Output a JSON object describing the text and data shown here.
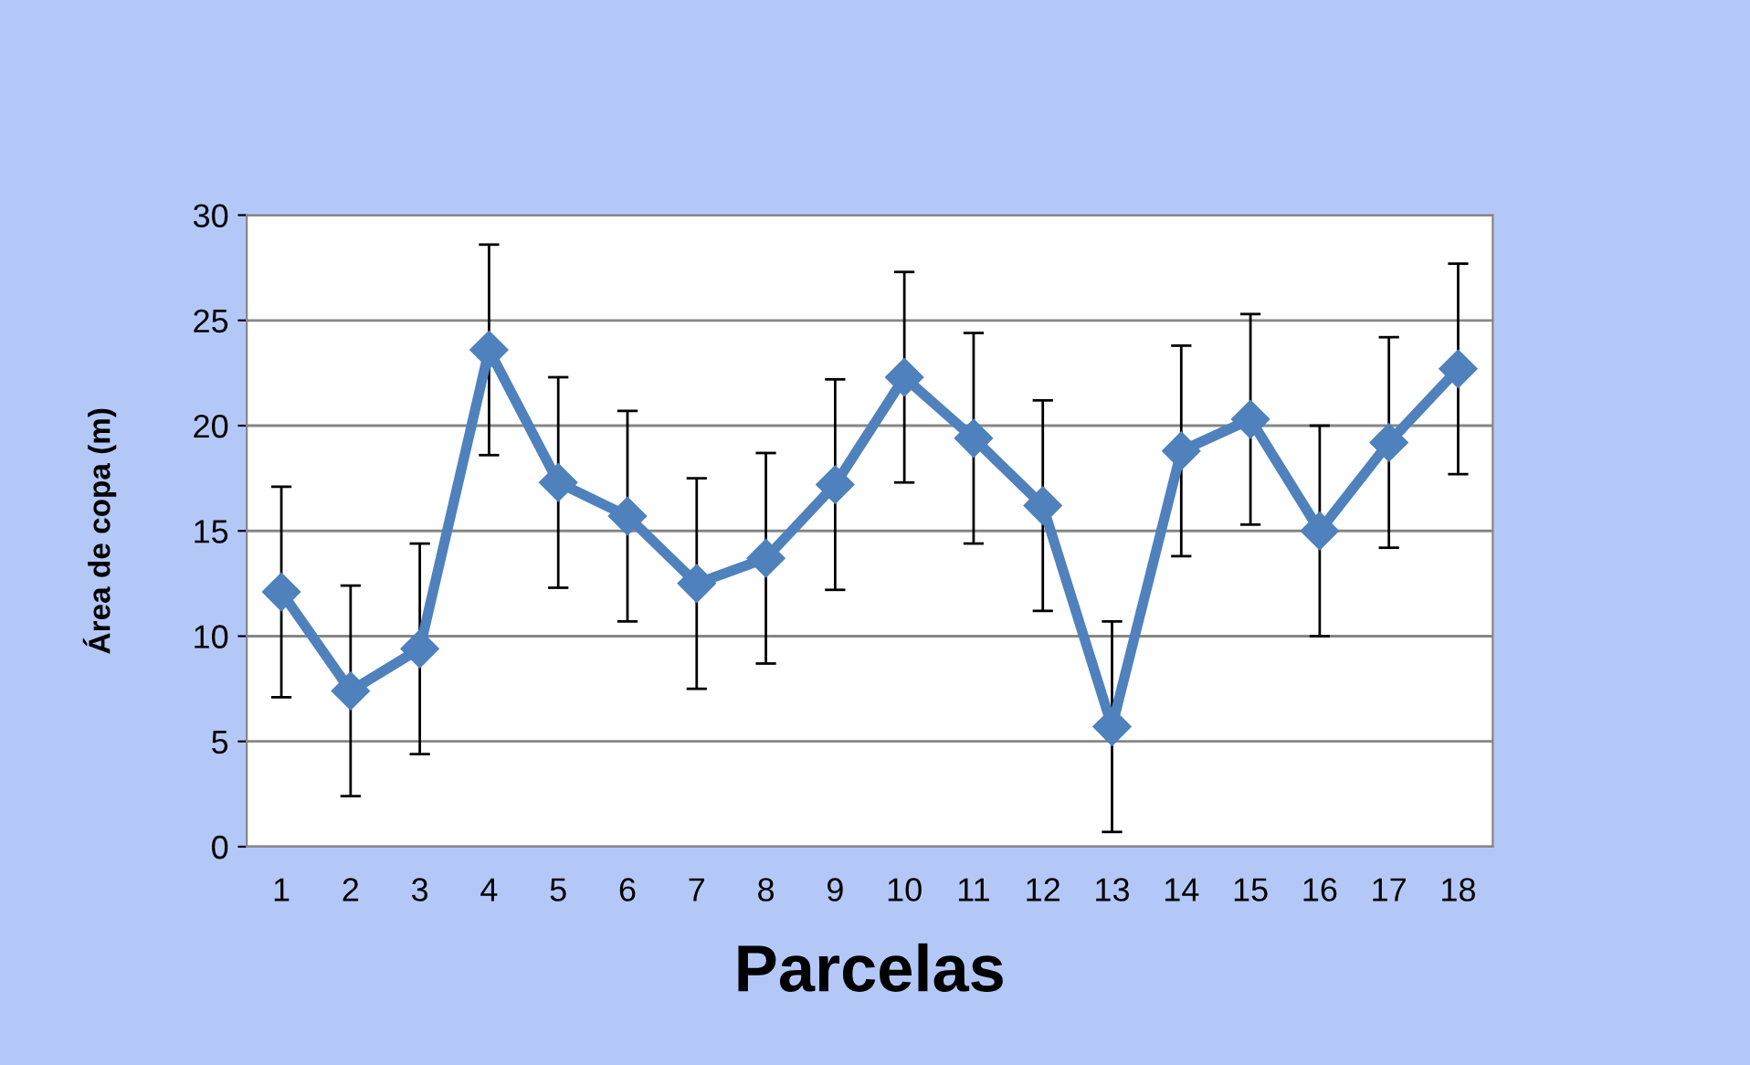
{
  "chart_data": {
    "type": "line",
    "xlabel": "Parcelas",
    "ylabel": "Área de copa (m)",
    "categories": [
      "1",
      "2",
      "3",
      "4",
      "5",
      "6",
      "7",
      "8",
      "9",
      "10",
      "11",
      "12",
      "13",
      "14",
      "15",
      "16",
      "17",
      "18"
    ],
    "series": [
      {
        "color": "#4f81bd",
        "values": [
          12.1,
          7.4,
          9.4,
          23.6,
          17.3,
          15.7,
          12.5,
          13.7,
          17.2,
          22.3,
          19.4,
          16.2,
          5.7,
          18.8,
          20.3,
          15.0,
          19.2,
          22.7
        ],
        "errors": [
          5,
          5,
          5,
          5,
          5,
          5,
          5,
          5,
          5,
          5,
          5,
          5,
          5,
          5,
          5,
          5,
          5,
          5
        ]
      }
    ],
    "ylim": [
      0,
      30
    ],
    "yticks": [
      0,
      5,
      10,
      15,
      20,
      25,
      30
    ],
    "grid": "y",
    "marker": "diamond",
    "line_style": "solid"
  }
}
